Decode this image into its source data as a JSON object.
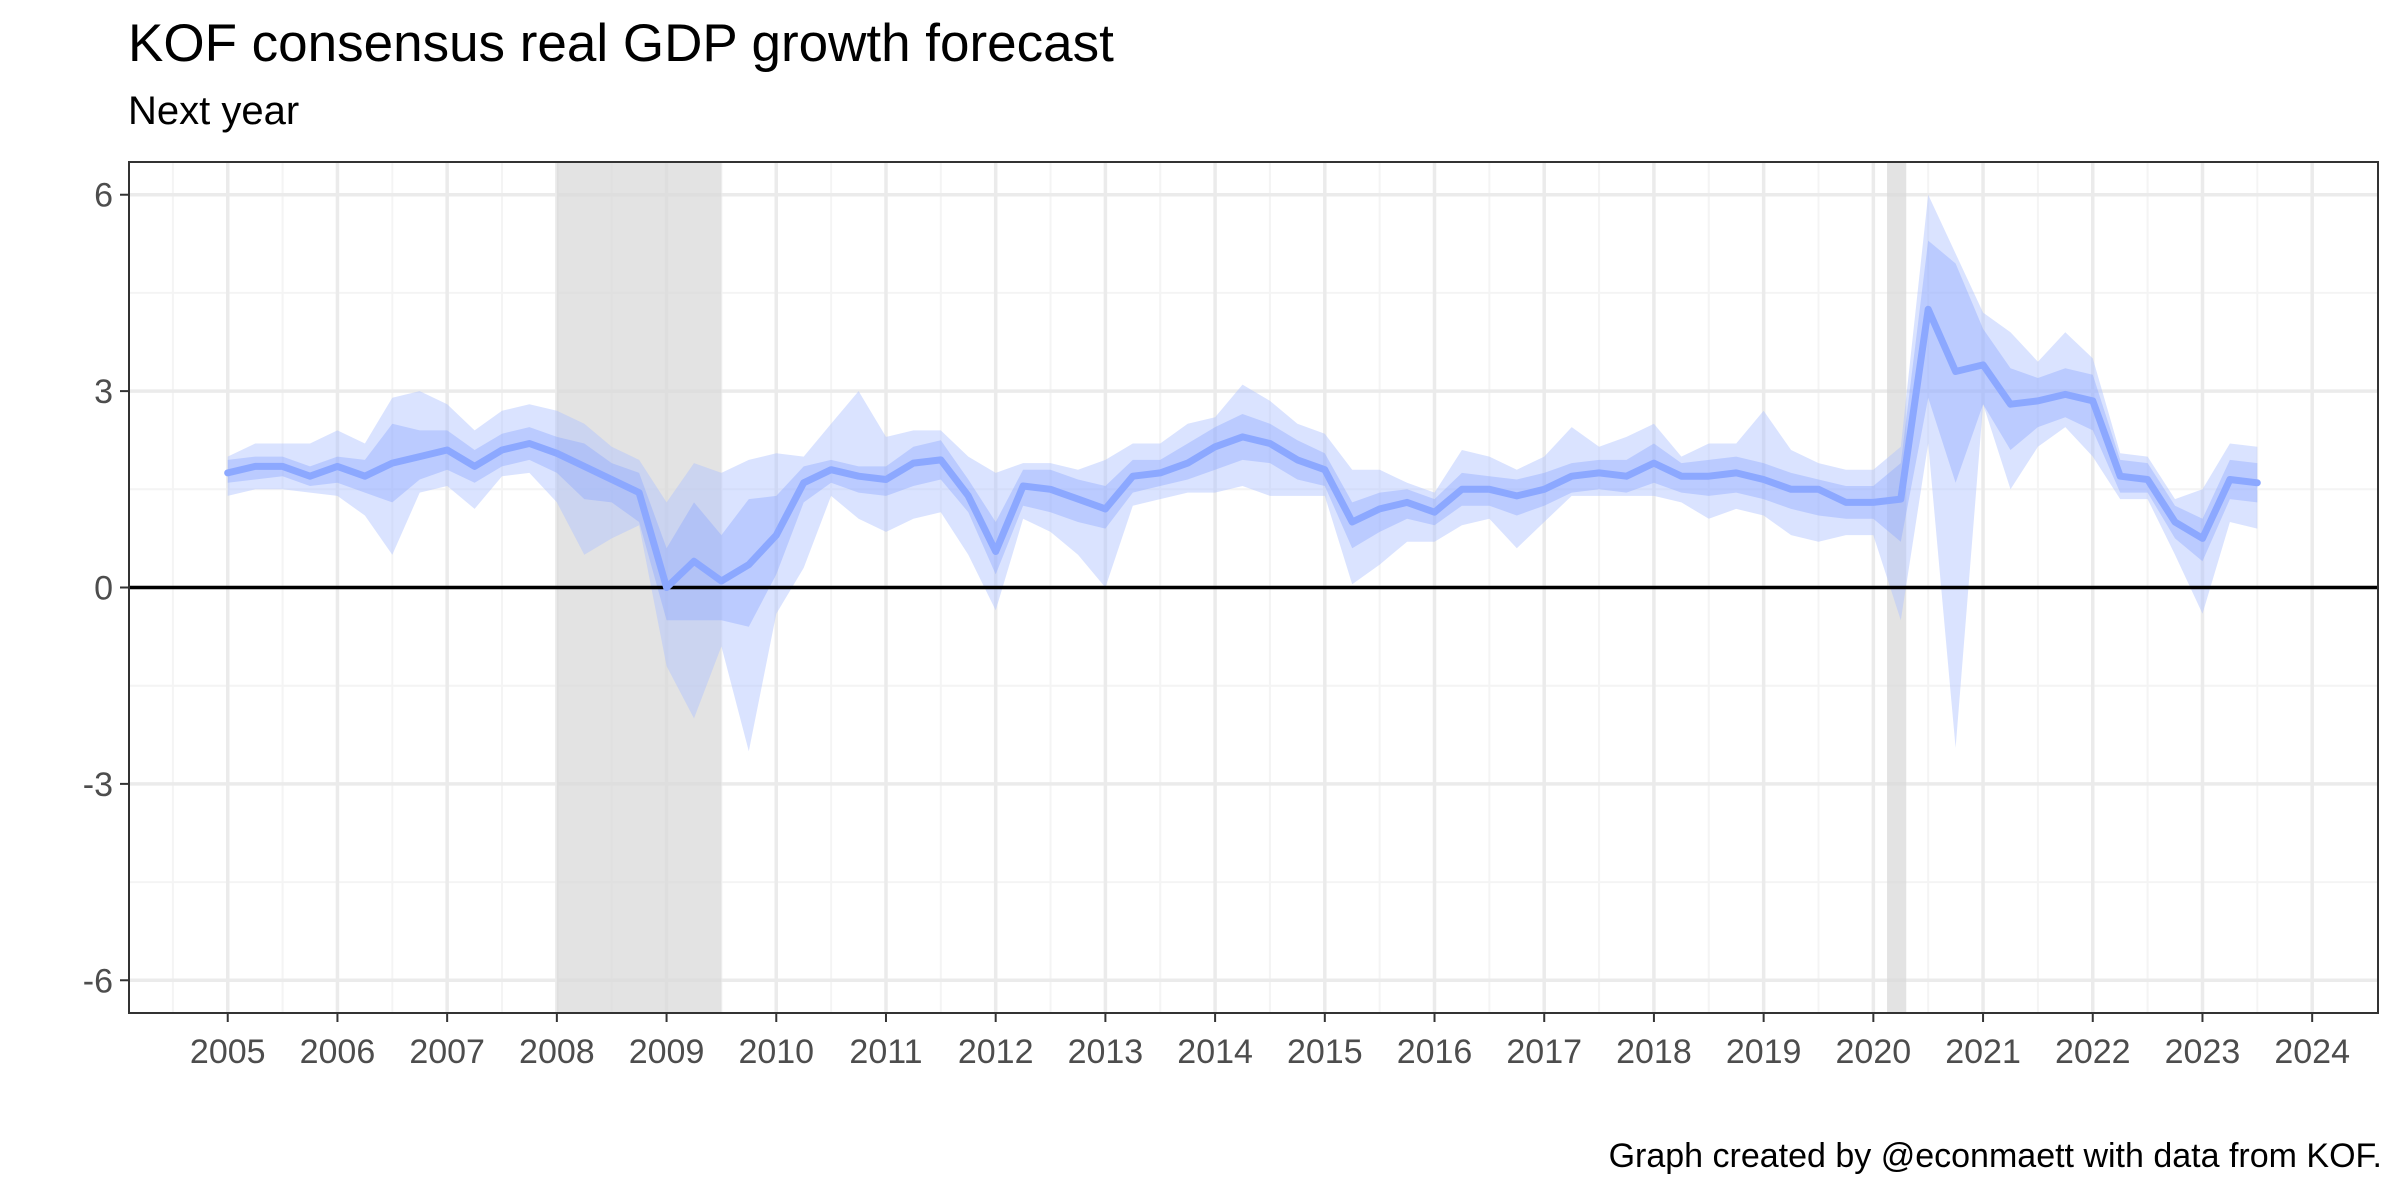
{
  "chart_data": {
    "type": "area",
    "title": "KOF consensus real GDP growth forecast",
    "subtitle": "Next year",
    "caption": "Graph created by @econmaett with data from KOF.",
    "xlabel": "",
    "ylabel": "",
    "xlim": [
      2004.1,
      2024.6
    ],
    "ylim": [
      -6.5,
      6.5
    ],
    "x_ticks": [
      2005,
      2006,
      2007,
      2008,
      2009,
      2010,
      2011,
      2012,
      2013,
      2014,
      2015,
      2016,
      2017,
      2018,
      2019,
      2020,
      2021,
      2022,
      2023,
      2024
    ],
    "y_ticks": [
      -6,
      -3,
      0,
      3,
      6
    ],
    "grid": true,
    "recession_bands": [
      [
        2008.0,
        2009.5
      ],
      [
        2020.125,
        2020.3
      ]
    ],
    "reference_line_y": 0,
    "x": [
      2005.0,
      2005.25,
      2005.5,
      2005.75,
      2006.0,
      2006.25,
      2006.5,
      2006.75,
      2007.0,
      2007.25,
      2007.5,
      2007.75,
      2008.0,
      2008.25,
      2008.5,
      2008.75,
      2009.0,
      2009.25,
      2009.5,
      2009.75,
      2010.0,
      2010.25,
      2010.5,
      2010.75,
      2011.0,
      2011.25,
      2011.5,
      2011.75,
      2012.0,
      2012.25,
      2012.5,
      2012.75,
      2013.0,
      2013.25,
      2013.5,
      2013.75,
      2014.0,
      2014.25,
      2014.5,
      2014.75,
      2015.0,
      2015.25,
      2015.5,
      2015.75,
      2016.0,
      2016.25,
      2016.5,
      2016.75,
      2017.0,
      2017.25,
      2017.5,
      2017.75,
      2018.0,
      2018.25,
      2018.5,
      2018.75,
      2019.0,
      2019.25,
      2019.5,
      2019.75,
      2020.0,
      2020.25,
      2020.5,
      2020.75,
      2021.0,
      2021.25,
      2021.5,
      2021.75,
      2022.0,
      2022.25,
      2022.5,
      2022.75,
      2023.0,
      2023.25,
      2023.5
    ],
    "series": [
      {
        "values": [
          1.75,
          1.85,
          1.85,
          1.7,
          1.85,
          1.7,
          1.9,
          2.0,
          2.1,
          1.85,
          2.1,
          2.2,
          2.05,
          1.85,
          1.65,
          1.45,
          0.0,
          0.4,
          0.1,
          0.35,
          0.8,
          1.6,
          1.8,
          1.7,
          1.65,
          1.9,
          1.95,
          1.4,
          0.55,
          1.55,
          1.5,
          1.35,
          1.2,
          1.7,
          1.75,
          1.9,
          2.15,
          2.3,
          2.2,
          1.95,
          1.8,
          1.0,
          1.2,
          1.3,
          1.15,
          1.5,
          1.5,
          1.4,
          1.5,
          1.7,
          1.75,
          1.7,
          1.9,
          1.7,
          1.7,
          1.75,
          1.65,
          1.5,
          1.5,
          1.3,
          1.3,
          1.35,
          4.25,
          3.3,
          3.4,
          2.8,
          2.85,
          2.95,
          2.85,
          1.7,
          1.65,
          1.0,
          0.75,
          1.65,
          1.6
        ],
        "inner_low": [
          1.6,
          1.65,
          1.7,
          1.55,
          1.6,
          1.45,
          1.3,
          1.65,
          1.8,
          1.6,
          1.85,
          1.95,
          1.75,
          1.35,
          1.3,
          1.0,
          -0.5,
          -0.5,
          -0.5,
          -0.6,
          0.2,
          1.3,
          1.6,
          1.45,
          1.4,
          1.55,
          1.65,
          1.15,
          0.2,
          1.25,
          1.15,
          1.0,
          0.9,
          1.45,
          1.55,
          1.65,
          1.8,
          1.95,
          1.9,
          1.65,
          1.55,
          0.6,
          0.85,
          1.05,
          0.95,
          1.25,
          1.25,
          1.1,
          1.25,
          1.45,
          1.5,
          1.45,
          1.6,
          1.45,
          1.4,
          1.45,
          1.35,
          1.2,
          1.1,
          1.05,
          1.05,
          0.7,
          2.9,
          1.6,
          2.8,
          2.1,
          2.45,
          2.6,
          2.4,
          1.45,
          1.45,
          0.75,
          0.4,
          1.35,
          1.3
        ],
        "inner_high": [
          1.95,
          2.0,
          2.0,
          1.85,
          2.0,
          1.95,
          2.5,
          2.4,
          2.4,
          2.1,
          2.35,
          2.45,
          2.3,
          2.2,
          1.9,
          1.75,
          0.6,
          1.3,
          0.8,
          1.35,
          1.4,
          1.85,
          1.95,
          1.85,
          1.85,
          2.15,
          2.25,
          1.65,
          1.0,
          1.8,
          1.8,
          1.65,
          1.55,
          1.95,
          1.95,
          2.2,
          2.45,
          2.65,
          2.5,
          2.25,
          2.05,
          1.3,
          1.45,
          1.5,
          1.35,
          1.75,
          1.7,
          1.65,
          1.75,
          1.9,
          1.95,
          1.95,
          2.2,
          1.9,
          1.95,
          2.0,
          1.9,
          1.75,
          1.65,
          1.55,
          1.55,
          1.9,
          5.3,
          4.95,
          3.95,
          3.35,
          3.2,
          3.35,
          3.25,
          1.95,
          1.9,
          1.25,
          1.05,
          1.95,
          1.9
        ]
      }
    ],
    "outer_low": [
      1.4,
      1.5,
      1.5,
      1.45,
      1.4,
      1.1,
      0.5,
      1.45,
      1.55,
      1.2,
      1.7,
      1.75,
      1.3,
      0.5,
      0.75,
      0.95,
      -1.2,
      -2.0,
      -0.9,
      -2.5,
      -0.4,
      0.3,
      1.4,
      1.05,
      0.85,
      1.05,
      1.15,
      0.5,
      -0.35,
      1.05,
      0.85,
      0.5,
      0.0,
      1.25,
      1.35,
      1.45,
      1.45,
      1.55,
      1.4,
      1.4,
      1.4,
      0.05,
      0.35,
      0.7,
      0.7,
      0.95,
      1.05,
      0.6,
      1.0,
      1.4,
      1.4,
      1.4,
      1.4,
      1.3,
      1.05,
      1.2,
      1.1,
      0.8,
      0.7,
      0.8,
      0.8,
      -0.5,
      2.2,
      -2.45,
      2.8,
      1.5,
      2.15,
      2.45,
      2.0,
      1.35,
      1.35,
      0.5,
      -0.4,
      1.0,
      0.9
    ],
    "outer_high": [
      2.0,
      2.2,
      2.2,
      2.2,
      2.4,
      2.2,
      2.9,
      3.0,
      2.8,
      2.4,
      2.7,
      2.8,
      2.7,
      2.5,
      2.15,
      1.95,
      1.3,
      1.9,
      1.75,
      1.95,
      2.05,
      2.0,
      2.5,
      3.0,
      2.3,
      2.4,
      2.4,
      2.0,
      1.75,
      1.9,
      1.9,
      1.8,
      1.95,
      2.2,
      2.2,
      2.5,
      2.6,
      3.1,
      2.85,
      2.5,
      2.35,
      1.8,
      1.8,
      1.6,
      1.45,
      2.1,
      2.0,
      1.8,
      2.0,
      2.45,
      2.15,
      2.3,
      2.5,
      2.0,
      2.2,
      2.2,
      2.7,
      2.1,
      1.9,
      1.8,
      1.8,
      2.15,
      6.0,
      5.1,
      4.2,
      3.9,
      3.45,
      3.9,
      3.5,
      2.05,
      2.0,
      1.35,
      1.5,
      2.2,
      2.15
    ],
    "colors": {
      "line": "#8ca8ff",
      "inner_band": "#8ca8ff",
      "outer_band": "#aec2ff",
      "recession": "#d9d9d9",
      "zero_line": "#000000",
      "grid_major": "#ebebeb",
      "grid_minor": "#f4f4f4",
      "panel_border": "#333333",
      "tick_label": "#4d4d4d"
    }
  }
}
